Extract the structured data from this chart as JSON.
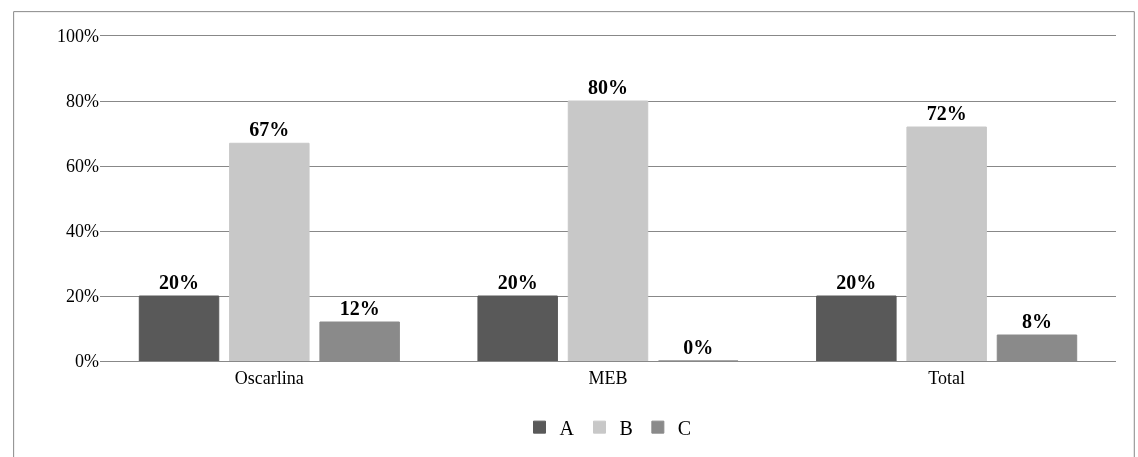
{
  "chart_data": {
    "type": "bar",
    "categories": [
      "Oscarlina",
      "MEB",
      "Total"
    ],
    "series": [
      {
        "name": "A",
        "color": "#595959",
        "values": [
          20,
          20,
          20
        ],
        "value_labels": [
          "20%",
          "20%",
          "20%"
        ]
      },
      {
        "name": "B",
        "color": "#c8c8c8",
        "values": [
          67,
          80,
          72
        ],
        "value_labels": [
          "67%",
          "80%",
          "72%"
        ]
      },
      {
        "name": "C",
        "color": "#8a8a8a",
        "values": [
          12,
          0,
          8
        ],
        "value_labels": [
          "12%",
          "0%",
          "8%"
        ]
      }
    ],
    "ylim": [
      0,
      100
    ],
    "yticks": [
      {
        "value": 0,
        "label": "0%"
      },
      {
        "value": 20,
        "label": "20%"
      },
      {
        "value": 40,
        "label": "40%"
      },
      {
        "value": 60,
        "label": "60%"
      },
      {
        "value": 80,
        "label": "80%"
      },
      {
        "value": 100,
        "label": "100%"
      }
    ],
    "grid": "y",
    "legend": "bottom"
  }
}
